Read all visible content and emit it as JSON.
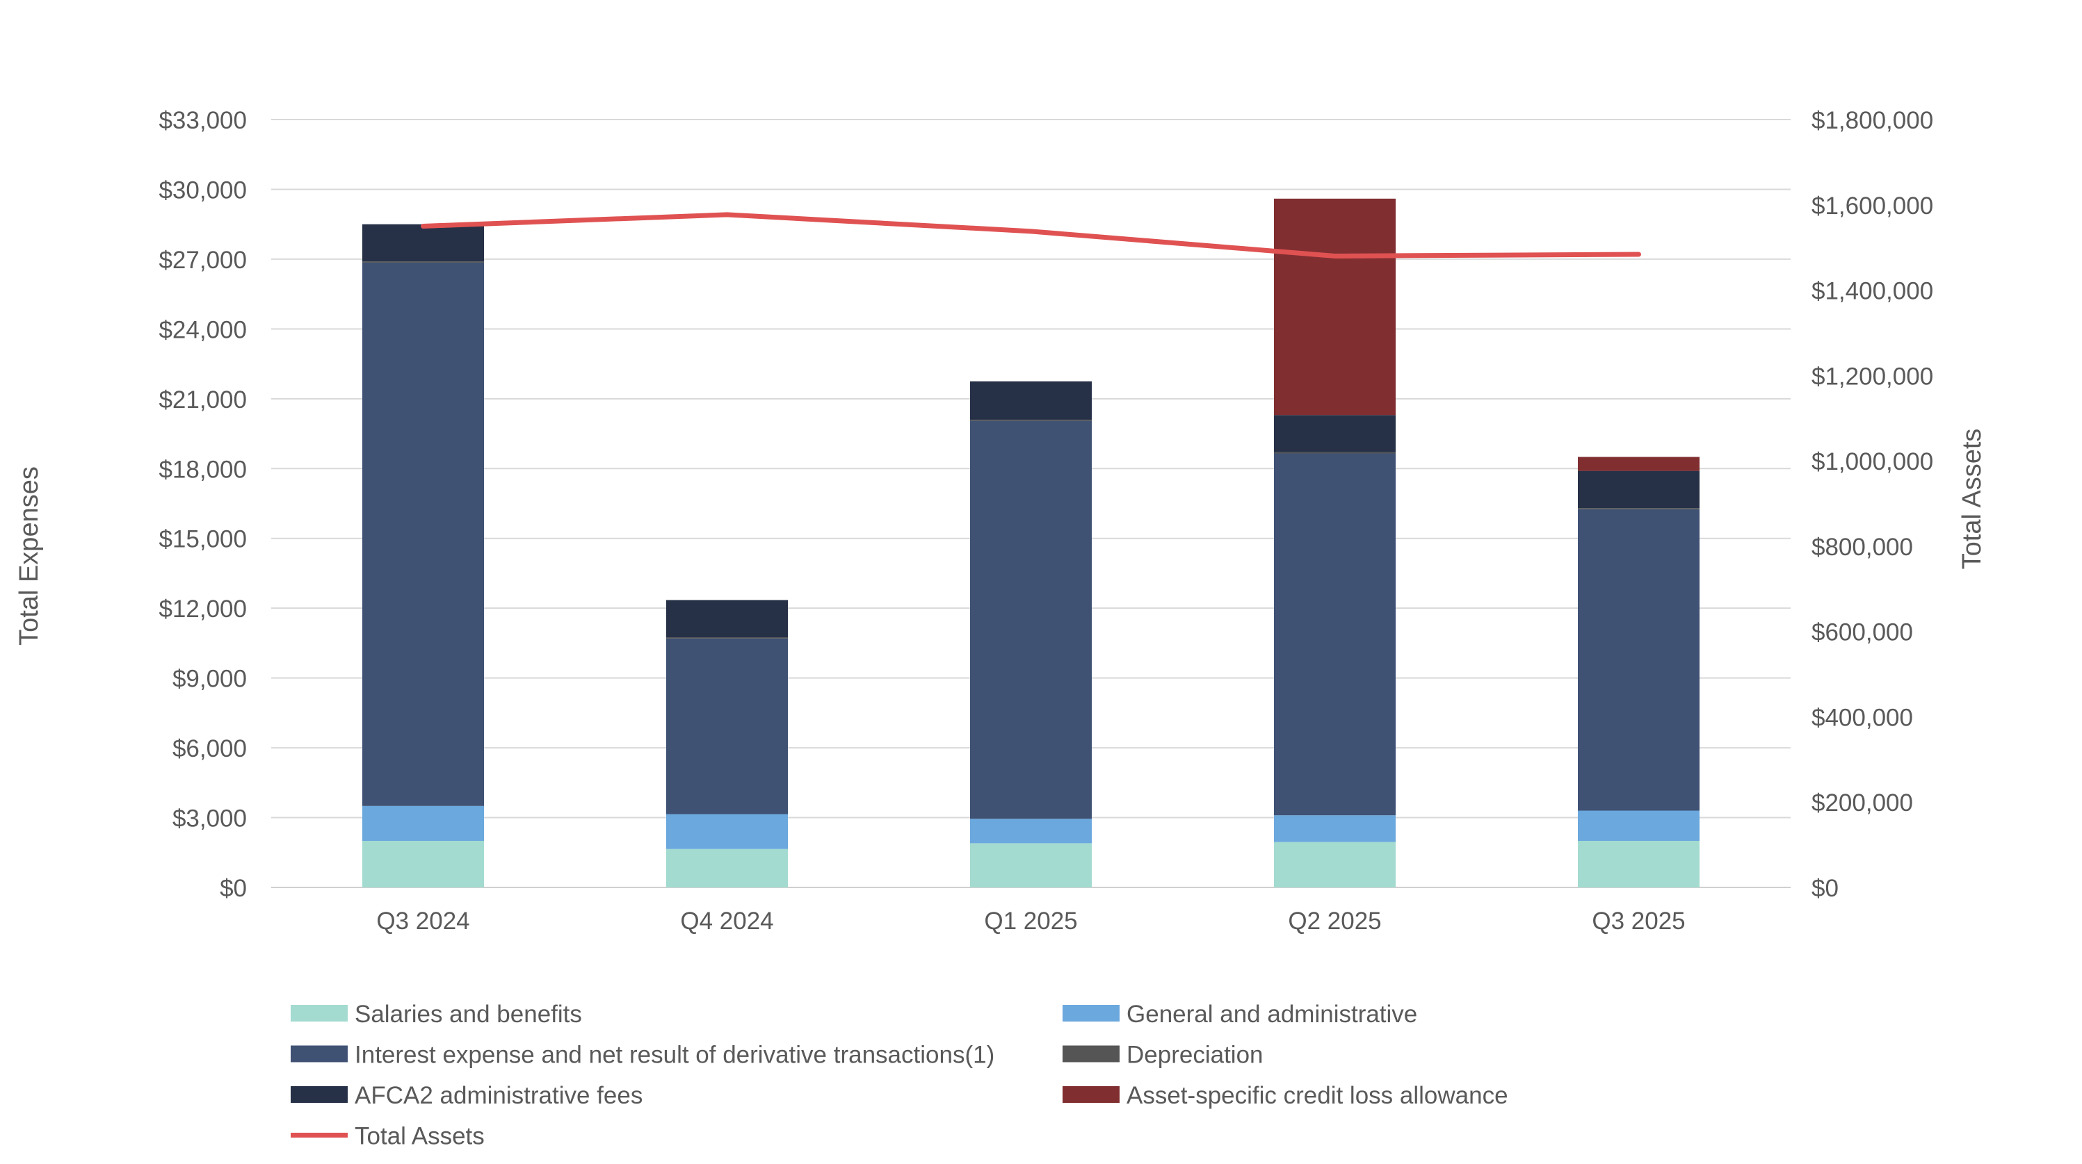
{
  "chart_data": {
    "type": "bar",
    "stacked": true,
    "categories": [
      "Q3 2024",
      "Q4 2024",
      "Q1 2025",
      "Q2 2025",
      "Q3 2025"
    ],
    "ylabel": "Total Expenses",
    "y2label": "Total Assets",
    "ylim": [
      0,
      33000
    ],
    "y2lim": [
      0,
      1800000
    ],
    "yticks": [
      "$0",
      "$3,000",
      "$6,000",
      "$9,000",
      "$12,000",
      "$15,000",
      "$18,000",
      "$21,000",
      "$24,000",
      "$27,000",
      "$30,000",
      "$33,000"
    ],
    "y2ticks": [
      "$0",
      "$200,000",
      "$400,000",
      "$600,000",
      "$800,000",
      "$1,000,000",
      "$1,200,000",
      "$1,400,000",
      "$1,600,000",
      "$1,800,000"
    ],
    "grid": true,
    "legend_position": "bottom",
    "series": [
      {
        "name": "Salaries and benefits",
        "color": "#a3dbd0",
        "values": [
          2000,
          1650,
          1900,
          1950,
          2000
        ]
      },
      {
        "name": "General and administrative",
        "color": "#6aa8de",
        "values": [
          1500,
          1500,
          1050,
          1150,
          1300
        ]
      },
      {
        "name": "Interest expense and net result of derivative transactions(1)",
        "color": "#3f5274",
        "values": [
          23350,
          7550,
          17100,
          15550,
          12950
        ]
      },
      {
        "name": "Depreciation",
        "color": "#555555",
        "values": [
          50,
          50,
          50,
          50,
          50
        ]
      },
      {
        "name": "AFCA2 administrative fees",
        "color": "#263147",
        "values": [
          1600,
          1600,
          1650,
          1600,
          1600
        ]
      },
      {
        "name": "Asset-specific credit loss allowance",
        "color": "#812e31",
        "values": [
          0,
          0,
          0,
          9300,
          600
        ]
      }
    ],
    "line_series": {
      "name": "Total Assets",
      "color": "#e05252",
      "axis": "right",
      "values": [
        1550000,
        1577000,
        1538000,
        1480000,
        1484000
      ]
    }
  }
}
